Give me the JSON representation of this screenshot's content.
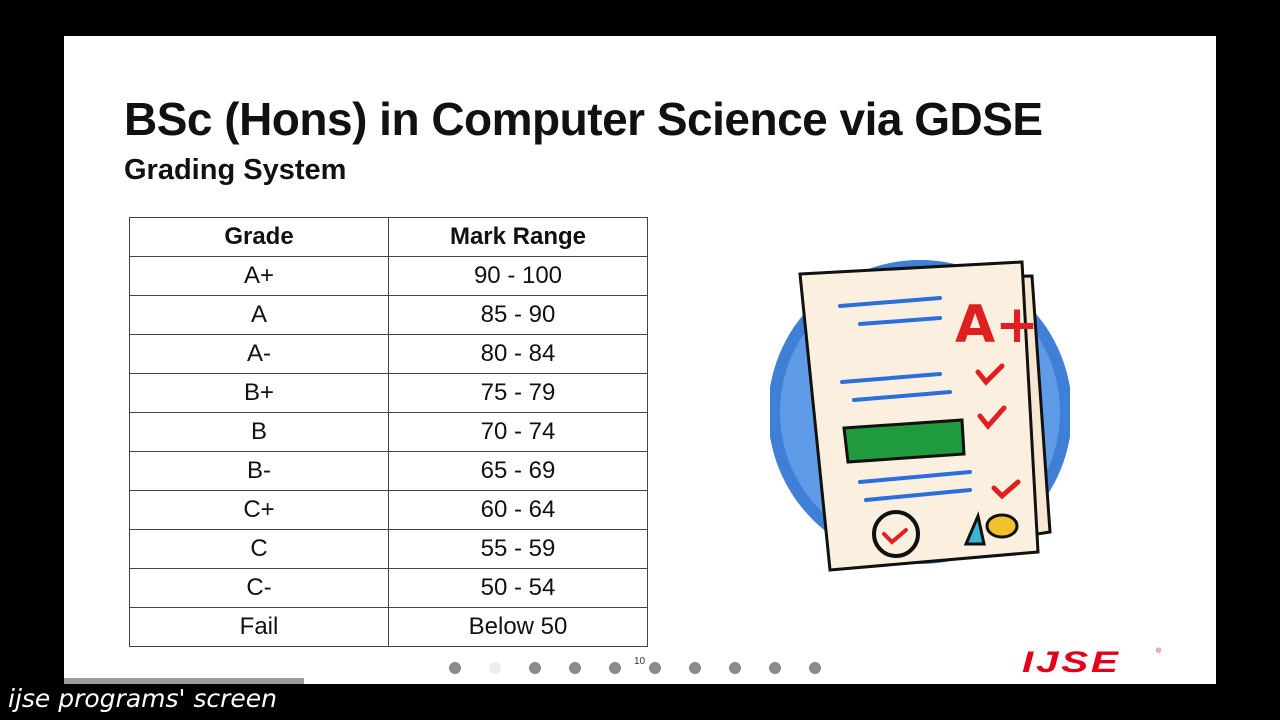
{
  "slide": {
    "title": "BSc (Hons) in Computer Science via GDSE",
    "subtitle": "Grading System",
    "page_number": "10",
    "logo_text": "IJSE",
    "logo_mark": "®"
  },
  "table": {
    "headers": [
      "Grade",
      "Mark Range"
    ],
    "rows": [
      [
        "A+",
        "90 - 100"
      ],
      [
        "A",
        "85 - 90"
      ],
      [
        "A-",
        "80 - 84"
      ],
      [
        "B+",
        "75 - 79"
      ],
      [
        "B",
        "70 - 74"
      ],
      [
        "B-",
        "65 - 69"
      ],
      [
        "C+",
        "60 - 64"
      ],
      [
        "C",
        "55 - 59"
      ],
      [
        "C-",
        "50 - 54"
      ],
      [
        "Fail",
        "Below 50"
      ]
    ]
  },
  "illustration": {
    "icon": "graded-paper-icon",
    "grade_mark": "A+"
  },
  "navigation": {
    "slide_count": 10,
    "active_index": 1
  },
  "overlay": {
    "caption": "ijse programs' screen"
  },
  "colors": {
    "logo_red": "#e3001b",
    "circle_blue": "#3f7fd6",
    "paper_bar_green": "#1f9a3c",
    "mark_red": "#e02020"
  }
}
